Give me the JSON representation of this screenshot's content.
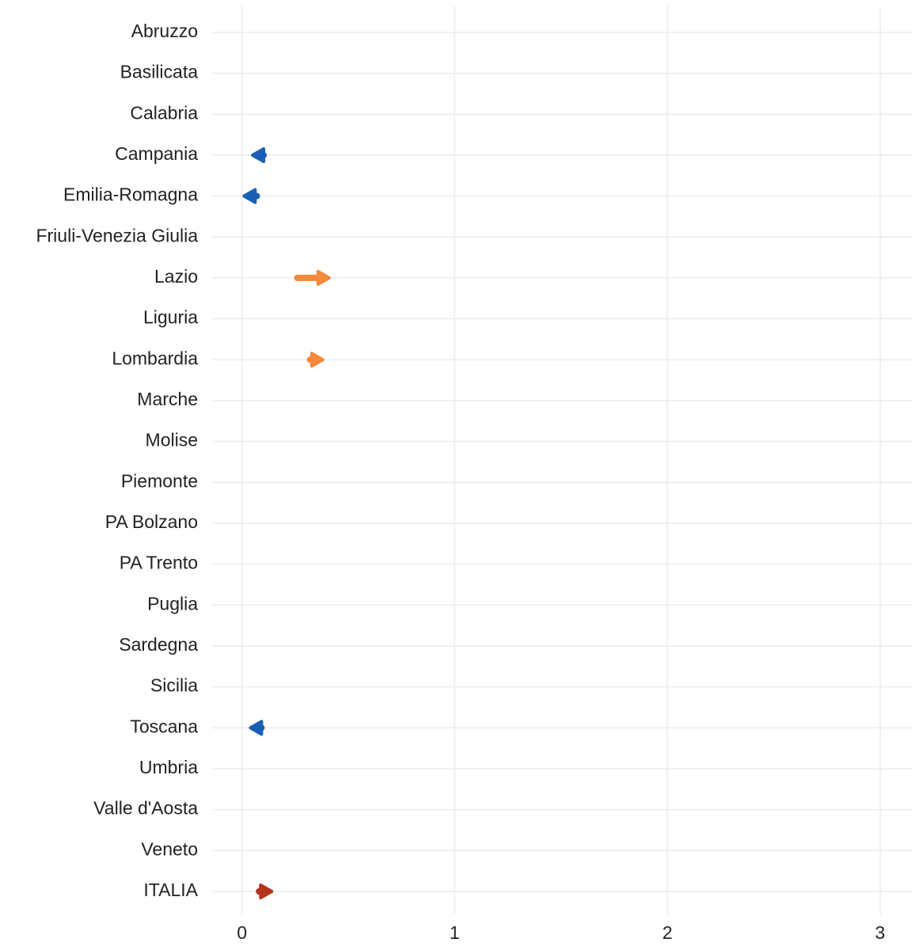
{
  "chart_data": {
    "type": "arrow",
    "categories": [
      "Abruzzo",
      "Basilicata",
      "Calabria",
      "Campania",
      "Emilia-Romagna",
      "Friuli-Venezia Giulia",
      "Lazio",
      "Liguria",
      "Lombardia",
      "Marche",
      "Molise",
      "Piemonte",
      "PA Bolzano",
      "PA Trento",
      "Puglia",
      "Sardegna",
      "Sicilia",
      "Toscana",
      "Umbria",
      "Valle d'Aosta",
      "Veneto",
      "ITALIA"
    ],
    "from": [
      null,
      null,
      null,
      0.09,
      0.07,
      null,
      0.26,
      null,
      0.32,
      null,
      null,
      null,
      null,
      null,
      null,
      null,
      null,
      0.09,
      null,
      null,
      null,
      0.08
    ],
    "to": [
      null,
      null,
      null,
      0.05,
      0.01,
      null,
      0.41,
      null,
      0.38,
      null,
      null,
      null,
      null,
      null,
      null,
      null,
      null,
      0.04,
      null,
      null,
      null,
      0.14
    ],
    "colors": [
      null,
      null,
      null,
      "#1a5fb4",
      "#1a5fb4",
      null,
      "#f5883a",
      null,
      "#f5883a",
      null,
      null,
      null,
      null,
      null,
      null,
      null,
      null,
      "#1a5fb4",
      null,
      null,
      null,
      "#b5321b"
    ],
    "xlim": [
      -0.14,
      3.15
    ],
    "xticks": [
      0,
      1,
      2,
      3
    ],
    "grid": true
  }
}
